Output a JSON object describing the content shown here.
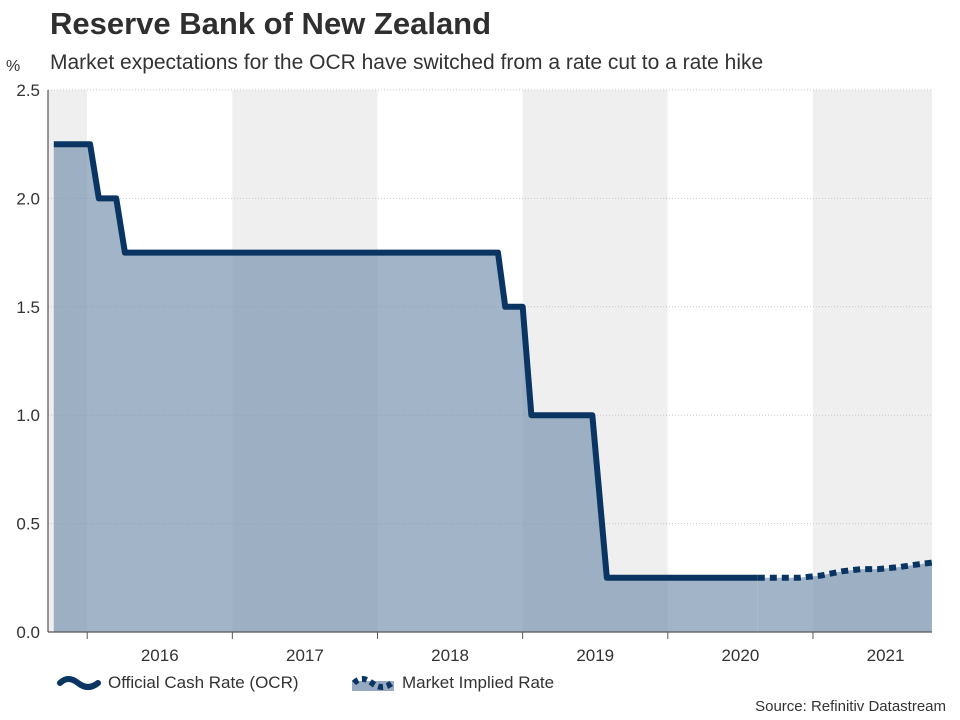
{
  "header": {
    "title": "Reserve Bank of New Zealand",
    "subtitle": "Market expectations for the OCR have switched from a rate cut to a rate hike",
    "unit": "%"
  },
  "source": "Source: Refinitiv Datastream",
  "colors": {
    "ocr_line": "#0a3563",
    "area_fill": "#7a95b0",
    "band_light": "#efefef",
    "band_white": "#ffffff",
    "axis": "#555555"
  },
  "chart_data": {
    "type": "line",
    "title": "Reserve Bank of New Zealand",
    "subtitle": "Market expectations for the OCR have switched from a rate cut to a rate hike",
    "ylabel": "%",
    "xlabel": "",
    "ylim": [
      0,
      2.5
    ],
    "xlim": [
      2015.73,
      2021.82
    ],
    "yticks": [
      0.0,
      0.5,
      1.0,
      1.5,
      2.0,
      2.5
    ],
    "ytick_labels": [
      "0.0",
      "0.5",
      "1.0",
      "1.5",
      "2.0",
      "2.5"
    ],
    "year_boundaries": [
      2016.0,
      2017.0,
      2018.0,
      2019.0,
      2020.0,
      2021.0
    ],
    "xtick_labels": [
      {
        "label": "2016",
        "x": 2016.5
      },
      {
        "label": "2017",
        "x": 2017.5
      },
      {
        "label": "2018",
        "x": 2018.5
      },
      {
        "label": "2019",
        "x": 2019.5
      },
      {
        "label": "2020",
        "x": 2020.5
      },
      {
        "label": "2021",
        "x": 2021.5
      }
    ],
    "grid": "horizontal dotted",
    "legend_position": "bottom-left",
    "series": [
      {
        "name": "Official Cash Rate (OCR)",
        "style": "solid step",
        "points": [
          [
            2015.77,
            2.25
          ],
          [
            2016.02,
            2.25
          ],
          [
            2016.08,
            2.0
          ],
          [
            2016.2,
            2.0
          ],
          [
            2016.26,
            1.75
          ],
          [
            2018.83,
            1.75
          ],
          [
            2018.88,
            1.5
          ],
          [
            2019.0,
            1.5
          ],
          [
            2019.06,
            1.0
          ],
          [
            2019.48,
            1.0
          ],
          [
            2019.58,
            0.25
          ],
          [
            2020.62,
            0.25
          ]
        ]
      },
      {
        "name": "Market Implied Rate",
        "style": "dotted",
        "points": [
          [
            2020.62,
            0.25
          ],
          [
            2020.75,
            0.25
          ],
          [
            2020.9,
            0.25
          ],
          [
            2021.05,
            0.26
          ],
          [
            2021.2,
            0.28
          ],
          [
            2021.33,
            0.29
          ],
          [
            2021.45,
            0.29
          ],
          [
            2021.6,
            0.3
          ],
          [
            2021.7,
            0.31
          ],
          [
            2021.82,
            0.32
          ]
        ]
      }
    ]
  },
  "legend": {
    "ocr_label": "Official Cash Rate (OCR)",
    "market_label": "Market Implied Rate"
  }
}
